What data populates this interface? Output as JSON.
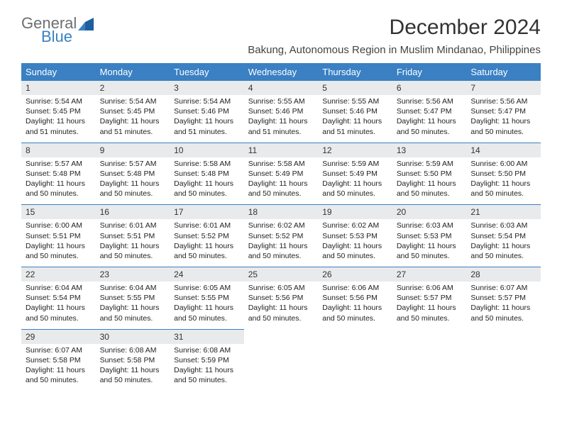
{
  "brand": {
    "word1": "General",
    "word2": "Blue",
    "color_gray": "#6d6e71",
    "color_blue": "#3a80c3"
  },
  "title": "December 2024",
  "location": "Bakung, Autonomous Region in Muslim Mindanao, Philippines",
  "colors": {
    "header_bg": "#3a80c3",
    "header_fg": "#ffffff",
    "numrow_bg": "#e9eaeb",
    "divider": "#3a80c3",
    "page_bg": "#ffffff"
  },
  "dow": [
    "Sunday",
    "Monday",
    "Tuesday",
    "Wednesday",
    "Thursday",
    "Friday",
    "Saturday"
  ],
  "weeks": [
    {
      "nums": [
        "1",
        "2",
        "3",
        "4",
        "5",
        "6",
        "7"
      ],
      "cells": [
        {
          "sunrise": "Sunrise: 5:54 AM",
          "sunset": "Sunset: 5:45 PM",
          "day1": "Daylight: 11 hours",
          "day2": "and 51 minutes."
        },
        {
          "sunrise": "Sunrise: 5:54 AM",
          "sunset": "Sunset: 5:45 PM",
          "day1": "Daylight: 11 hours",
          "day2": "and 51 minutes."
        },
        {
          "sunrise": "Sunrise: 5:54 AM",
          "sunset": "Sunset: 5:46 PM",
          "day1": "Daylight: 11 hours",
          "day2": "and 51 minutes."
        },
        {
          "sunrise": "Sunrise: 5:55 AM",
          "sunset": "Sunset: 5:46 PM",
          "day1": "Daylight: 11 hours",
          "day2": "and 51 minutes."
        },
        {
          "sunrise": "Sunrise: 5:55 AM",
          "sunset": "Sunset: 5:46 PM",
          "day1": "Daylight: 11 hours",
          "day2": "and 51 minutes."
        },
        {
          "sunrise": "Sunrise: 5:56 AM",
          "sunset": "Sunset: 5:47 PM",
          "day1": "Daylight: 11 hours",
          "day2": "and 50 minutes."
        },
        {
          "sunrise": "Sunrise: 5:56 AM",
          "sunset": "Sunset: 5:47 PM",
          "day1": "Daylight: 11 hours",
          "day2": "and 50 minutes."
        }
      ]
    },
    {
      "nums": [
        "8",
        "9",
        "10",
        "11",
        "12",
        "13",
        "14"
      ],
      "cells": [
        {
          "sunrise": "Sunrise: 5:57 AM",
          "sunset": "Sunset: 5:48 PM",
          "day1": "Daylight: 11 hours",
          "day2": "and 50 minutes."
        },
        {
          "sunrise": "Sunrise: 5:57 AM",
          "sunset": "Sunset: 5:48 PM",
          "day1": "Daylight: 11 hours",
          "day2": "and 50 minutes."
        },
        {
          "sunrise": "Sunrise: 5:58 AM",
          "sunset": "Sunset: 5:48 PM",
          "day1": "Daylight: 11 hours",
          "day2": "and 50 minutes."
        },
        {
          "sunrise": "Sunrise: 5:58 AM",
          "sunset": "Sunset: 5:49 PM",
          "day1": "Daylight: 11 hours",
          "day2": "and 50 minutes."
        },
        {
          "sunrise": "Sunrise: 5:59 AM",
          "sunset": "Sunset: 5:49 PM",
          "day1": "Daylight: 11 hours",
          "day2": "and 50 minutes."
        },
        {
          "sunrise": "Sunrise: 5:59 AM",
          "sunset": "Sunset: 5:50 PM",
          "day1": "Daylight: 11 hours",
          "day2": "and 50 minutes."
        },
        {
          "sunrise": "Sunrise: 6:00 AM",
          "sunset": "Sunset: 5:50 PM",
          "day1": "Daylight: 11 hours",
          "day2": "and 50 minutes."
        }
      ]
    },
    {
      "nums": [
        "15",
        "16",
        "17",
        "18",
        "19",
        "20",
        "21"
      ],
      "cells": [
        {
          "sunrise": "Sunrise: 6:00 AM",
          "sunset": "Sunset: 5:51 PM",
          "day1": "Daylight: 11 hours",
          "day2": "and 50 minutes."
        },
        {
          "sunrise": "Sunrise: 6:01 AM",
          "sunset": "Sunset: 5:51 PM",
          "day1": "Daylight: 11 hours",
          "day2": "and 50 minutes."
        },
        {
          "sunrise": "Sunrise: 6:01 AM",
          "sunset": "Sunset: 5:52 PM",
          "day1": "Daylight: 11 hours",
          "day2": "and 50 minutes."
        },
        {
          "sunrise": "Sunrise: 6:02 AM",
          "sunset": "Sunset: 5:52 PM",
          "day1": "Daylight: 11 hours",
          "day2": "and 50 minutes."
        },
        {
          "sunrise": "Sunrise: 6:02 AM",
          "sunset": "Sunset: 5:53 PM",
          "day1": "Daylight: 11 hours",
          "day2": "and 50 minutes."
        },
        {
          "sunrise": "Sunrise: 6:03 AM",
          "sunset": "Sunset: 5:53 PM",
          "day1": "Daylight: 11 hours",
          "day2": "and 50 minutes."
        },
        {
          "sunrise": "Sunrise: 6:03 AM",
          "sunset": "Sunset: 5:54 PM",
          "day1": "Daylight: 11 hours",
          "day2": "and 50 minutes."
        }
      ]
    },
    {
      "nums": [
        "22",
        "23",
        "24",
        "25",
        "26",
        "27",
        "28"
      ],
      "cells": [
        {
          "sunrise": "Sunrise: 6:04 AM",
          "sunset": "Sunset: 5:54 PM",
          "day1": "Daylight: 11 hours",
          "day2": "and 50 minutes."
        },
        {
          "sunrise": "Sunrise: 6:04 AM",
          "sunset": "Sunset: 5:55 PM",
          "day1": "Daylight: 11 hours",
          "day2": "and 50 minutes."
        },
        {
          "sunrise": "Sunrise: 6:05 AM",
          "sunset": "Sunset: 5:55 PM",
          "day1": "Daylight: 11 hours",
          "day2": "and 50 minutes."
        },
        {
          "sunrise": "Sunrise: 6:05 AM",
          "sunset": "Sunset: 5:56 PM",
          "day1": "Daylight: 11 hours",
          "day2": "and 50 minutes."
        },
        {
          "sunrise": "Sunrise: 6:06 AM",
          "sunset": "Sunset: 5:56 PM",
          "day1": "Daylight: 11 hours",
          "day2": "and 50 minutes."
        },
        {
          "sunrise": "Sunrise: 6:06 AM",
          "sunset": "Sunset: 5:57 PM",
          "day1": "Daylight: 11 hours",
          "day2": "and 50 minutes."
        },
        {
          "sunrise": "Sunrise: 6:07 AM",
          "sunset": "Sunset: 5:57 PM",
          "day1": "Daylight: 11 hours",
          "day2": "and 50 minutes."
        }
      ]
    },
    {
      "nums": [
        "29",
        "30",
        "31",
        "",
        "",
        "",
        ""
      ],
      "cells": [
        {
          "sunrise": "Sunrise: 6:07 AM",
          "sunset": "Sunset: 5:58 PM",
          "day1": "Daylight: 11 hours",
          "day2": "and 50 minutes."
        },
        {
          "sunrise": "Sunrise: 6:08 AM",
          "sunset": "Sunset: 5:58 PM",
          "day1": "Daylight: 11 hours",
          "day2": "and 50 minutes."
        },
        {
          "sunrise": "Sunrise: 6:08 AM",
          "sunset": "Sunset: 5:59 PM",
          "day1": "Daylight: 11 hours",
          "day2": "and 50 minutes."
        },
        null,
        null,
        null,
        null
      ]
    }
  ]
}
